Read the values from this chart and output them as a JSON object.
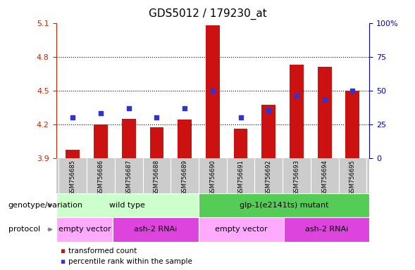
{
  "title": "GDS5012 / 179230_at",
  "samples": [
    "GSM756685",
    "GSM756686",
    "GSM756687",
    "GSM756688",
    "GSM756689",
    "GSM756690",
    "GSM756691",
    "GSM756692",
    "GSM756693",
    "GSM756694",
    "GSM756695"
  ],
  "bar_values": [
    3.97,
    4.2,
    4.25,
    4.17,
    4.24,
    5.08,
    4.16,
    4.37,
    4.73,
    4.71,
    4.5
  ],
  "dot_values": [
    30,
    33,
    37,
    30,
    37,
    50,
    30,
    35,
    46,
    43,
    50
  ],
  "bar_bottom": 3.9,
  "ylim_left": [
    3.9,
    5.1
  ],
  "ylim_right": [
    0,
    100
  ],
  "yticks_left": [
    3.9,
    4.2,
    4.5,
    4.8,
    5.1
  ],
  "yticks_right": [
    0,
    25,
    50,
    75,
    100
  ],
  "ytick_labels_right": [
    "0",
    "25",
    "50",
    "75",
    "100%"
  ],
  "dotted_lines": [
    4.2,
    4.5,
    4.8
  ],
  "bar_color": "#cc1111",
  "dot_color": "#3333cc",
  "background_color": "#ffffff",
  "genotype_groups": [
    {
      "label": "wild type",
      "start": 0,
      "end": 4,
      "color": "#ccffcc"
    },
    {
      "label": "glp-1(e2141ts) mutant",
      "start": 5,
      "end": 10,
      "color": "#55cc55"
    }
  ],
  "protocol_groups": [
    {
      "label": "empty vector",
      "start": 0,
      "end": 1,
      "color": "#ffaaff"
    },
    {
      "label": "ash-2 RNAi",
      "start": 2,
      "end": 4,
      "color": "#dd44dd"
    },
    {
      "label": "empty vector",
      "start": 5,
      "end": 7,
      "color": "#ffaaff"
    },
    {
      "label": "ash-2 RNAi",
      "start": 8,
      "end": 10,
      "color": "#dd44dd"
    }
  ],
  "legend_items": [
    {
      "label": "transformed count",
      "color": "#cc1111"
    },
    {
      "label": "percentile rank within the sample",
      "color": "#3333cc"
    }
  ],
  "genotype_label": "genotype/variation",
  "protocol_label": "protocol",
  "title_fontsize": 11,
  "axis_label_color_left": "#cc2200",
  "axis_label_color_right": "#0000cc",
  "tick_bg_color": "#cccccc"
}
